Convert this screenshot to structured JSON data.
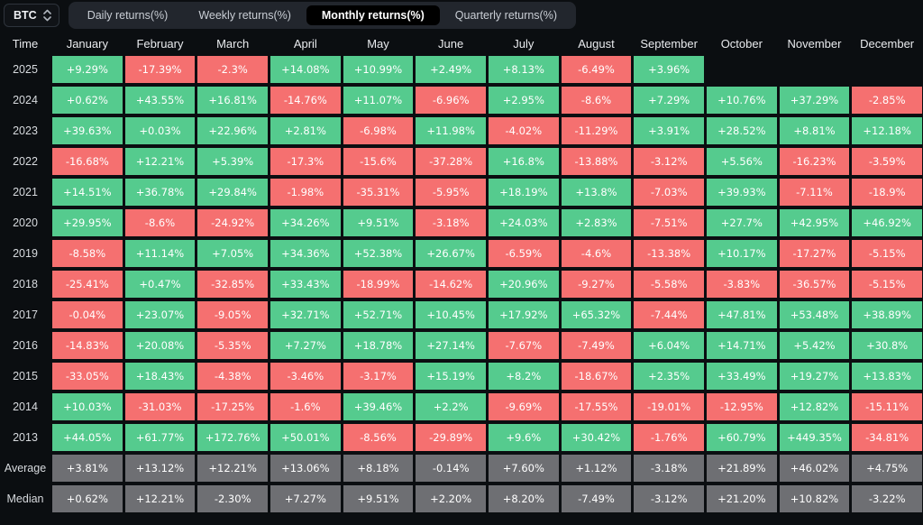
{
  "toolbar": {
    "symbol": "BTC",
    "tabs": [
      {
        "label": "Daily returns(%)",
        "active": false
      },
      {
        "label": "Weekly returns(%)",
        "active": false
      },
      {
        "label": "Monthly returns(%)",
        "active": true
      },
      {
        "label": "Quarterly returns(%)",
        "active": false
      }
    ]
  },
  "colors": {
    "page_bg": "#0b0e11",
    "positive": "#55cb8e",
    "negative": "#f57070",
    "summary": "#6e6f73",
    "active_tab_bg": "#000000"
  },
  "table": {
    "columns": [
      "Time",
      "January",
      "February",
      "March",
      "April",
      "May",
      "June",
      "July",
      "August",
      "September",
      "October",
      "November",
      "December"
    ],
    "rows": [
      {
        "label": "2025",
        "type": "year",
        "cells": [
          "+9.29%",
          "-17.39%",
          "-2.3%",
          "+14.08%",
          "+10.99%",
          "+2.49%",
          "+8.13%",
          "-6.49%",
          "+3.96%",
          "",
          "",
          ""
        ]
      },
      {
        "label": "2024",
        "type": "year",
        "cells": [
          "+0.62%",
          "+43.55%",
          "+16.81%",
          "-14.76%",
          "+11.07%",
          "-6.96%",
          "+2.95%",
          "-8.6%",
          "+7.29%",
          "+10.76%",
          "+37.29%",
          "-2.85%"
        ]
      },
      {
        "label": "2023",
        "type": "year",
        "cells": [
          "+39.63%",
          "+0.03%",
          "+22.96%",
          "+2.81%",
          "-6.98%",
          "+11.98%",
          "-4.02%",
          "-11.29%",
          "+3.91%",
          "+28.52%",
          "+8.81%",
          "+12.18%"
        ]
      },
      {
        "label": "2022",
        "type": "year",
        "cells": [
          "-16.68%",
          "+12.21%",
          "+5.39%",
          "-17.3%",
          "-15.6%",
          "-37.28%",
          "+16.8%",
          "-13.88%",
          "-3.12%",
          "+5.56%",
          "-16.23%",
          "-3.59%"
        ]
      },
      {
        "label": "2021",
        "type": "year",
        "cells": [
          "+14.51%",
          "+36.78%",
          "+29.84%",
          "-1.98%",
          "-35.31%",
          "-5.95%",
          "+18.19%",
          "+13.8%",
          "-7.03%",
          "+39.93%",
          "-7.11%",
          "-18.9%"
        ]
      },
      {
        "label": "2020",
        "type": "year",
        "cells": [
          "+29.95%",
          "-8.6%",
          "-24.92%",
          "+34.26%",
          "+9.51%",
          "-3.18%",
          "+24.03%",
          "+2.83%",
          "-7.51%",
          "+27.7%",
          "+42.95%",
          "+46.92%"
        ]
      },
      {
        "label": "2019",
        "type": "year",
        "cells": [
          "-8.58%",
          "+11.14%",
          "+7.05%",
          "+34.36%",
          "+52.38%",
          "+26.67%",
          "-6.59%",
          "-4.6%",
          "-13.38%",
          "+10.17%",
          "-17.27%",
          "-5.15%"
        ]
      },
      {
        "label": "2018",
        "type": "year",
        "cells": [
          "-25.41%",
          "+0.47%",
          "-32.85%",
          "+33.43%",
          "-18.99%",
          "-14.62%",
          "+20.96%",
          "-9.27%",
          "-5.58%",
          "-3.83%",
          "-36.57%",
          "-5.15%"
        ]
      },
      {
        "label": "2017",
        "type": "year",
        "cells": [
          "-0.04%",
          "+23.07%",
          "-9.05%",
          "+32.71%",
          "+52.71%",
          "+10.45%",
          "+17.92%",
          "+65.32%",
          "-7.44%",
          "+47.81%",
          "+53.48%",
          "+38.89%"
        ]
      },
      {
        "label": "2016",
        "type": "year",
        "cells": [
          "-14.83%",
          "+20.08%",
          "-5.35%",
          "+7.27%",
          "+18.78%",
          "+27.14%",
          "-7.67%",
          "-7.49%",
          "+6.04%",
          "+14.71%",
          "+5.42%",
          "+30.8%"
        ]
      },
      {
        "label": "2015",
        "type": "year",
        "cells": [
          "-33.05%",
          "+18.43%",
          "-4.38%",
          "-3.46%",
          "-3.17%",
          "+15.19%",
          "+8.2%",
          "-18.67%",
          "+2.35%",
          "+33.49%",
          "+19.27%",
          "+13.83%"
        ]
      },
      {
        "label": "2014",
        "type": "year",
        "cells": [
          "+10.03%",
          "-31.03%",
          "-17.25%",
          "-1.6%",
          "+39.46%",
          "+2.2%",
          "-9.69%",
          "-17.55%",
          "-19.01%",
          "-12.95%",
          "+12.82%",
          "-15.11%"
        ]
      },
      {
        "label": "2013",
        "type": "year",
        "cells": [
          "+44.05%",
          "+61.77%",
          "+172.76%",
          "+50.01%",
          "-8.56%",
          "-29.89%",
          "+9.6%",
          "+30.42%",
          "-1.76%",
          "+60.79%",
          "+449.35%",
          "-34.81%"
        ]
      },
      {
        "label": "Average",
        "type": "summary",
        "cells": [
          "+3.81%",
          "+13.12%",
          "+12.21%",
          "+13.06%",
          "+8.18%",
          "-0.14%",
          "+7.60%",
          "+1.12%",
          "-3.18%",
          "+21.89%",
          "+46.02%",
          "+4.75%"
        ]
      },
      {
        "label": "Median",
        "type": "summary",
        "cells": [
          "+0.62%",
          "+12.21%",
          "-2.30%",
          "+7.27%",
          "+9.51%",
          "+2.20%",
          "+8.20%",
          "-7.49%",
          "-3.12%",
          "+21.20%",
          "+10.82%",
          "-3.22%"
        ]
      }
    ]
  }
}
